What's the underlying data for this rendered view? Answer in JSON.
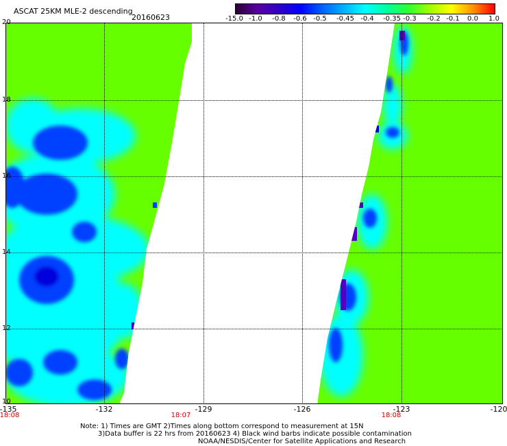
{
  "header": {
    "title": "ASCAT 25KM MLE-2 descending",
    "date": "20160623"
  },
  "colorbar": {
    "labels": [
      "-15.0",
      "-1.0",
      "-0.8",
      "-0.6",
      "-0.5",
      "-0.45",
      "-0.4",
      "-0.35",
      "-0.3",
      "-0.2",
      "-0.1",
      "0.0",
      "1.0"
    ],
    "colors": [
      "#2a0033",
      "#5a00a0",
      "#3000c8",
      "#0000ff",
      "#0060ff",
      "#00b0ff",
      "#00ffff",
      "#00ffa0",
      "#30ff30",
      "#a0ff00",
      "#ffff00",
      "#ff9000",
      "#ff0000"
    ]
  },
  "map": {
    "lat_labels": [
      "20",
      "18",
      "16",
      "14",
      "12",
      "10"
    ],
    "lon_labels": [
      "-135",
      "-132",
      "-129",
      "-126",
      "-123",
      "-120"
    ],
    "time_labels": [
      "18:08",
      "18:07",
      "18:08"
    ],
    "colors": {
      "green": "#66ff00",
      "cyan": "#00ffff",
      "blue": "#0040ff",
      "deep_blue": "#0000dd",
      "purple": "#5000c0"
    }
  },
  "notes": {
    "line1": "Note: 1) Times are GMT 2)Times along bottom correspond to measurement at 15N",
    "line2": "3)Data buffer is 22 hrs from 20160623 4) Black wind barbs indicate possible contamination",
    "line3": "NOAA/NESDIS/Center for Satellite Applications and Research"
  }
}
